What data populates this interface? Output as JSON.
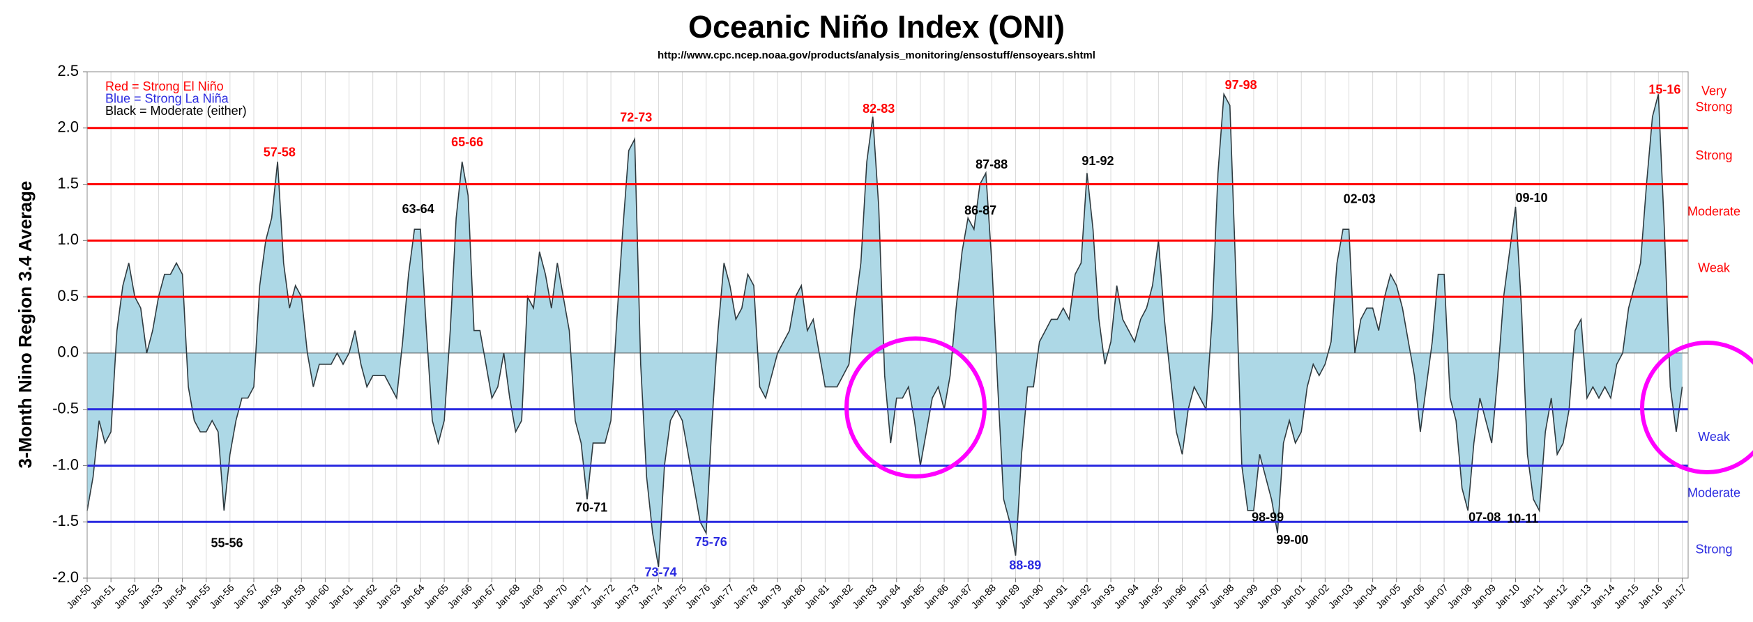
{
  "chart_data": {
    "type": "area",
    "title": "Oceanic Niño Index (ONI)",
    "subtitle": "http://www.cpc.ncep.noaa.gov/products/analysis_monitoring/ensostuff/ensoyears.shtml",
    "ylabel": "3-Month Nino Region 3.4 Average",
    "legend_notes": [
      {
        "text": "Red = Strong El Niño",
        "color": "#ff0000"
      },
      {
        "text": "Blue = Strong La Niña",
        "color": "#2a2ae0"
      },
      {
        "text": "Black = Moderate (either)",
        "color": "#000000"
      }
    ],
    "series": [
      {
        "color": "#add8e6",
        "line_color": "#2f3a3f",
        "x": [
          1950,
          1950.25,
          1950.5,
          1950.75,
          1951,
          1951.25,
          1951.5,
          1951.75,
          1952,
          1952.25,
          1952.5,
          1952.75,
          1953,
          1953.25,
          1953.5,
          1953.75,
          1954,
          1954.25,
          1954.5,
          1954.75,
          1955,
          1955.25,
          1955.5,
          1955.75,
          1956,
          1956.25,
          1956.5,
          1956.75,
          1957,
          1957.25,
          1957.5,
          1957.75,
          1958,
          1958.25,
          1958.5,
          1958.75,
          1959,
          1959.25,
          1959.5,
          1959.75,
          1960,
          1960.25,
          1960.5,
          1960.75,
          1961,
          1961.25,
          1961.5,
          1961.75,
          1962,
          1962.25,
          1962.5,
          1962.75,
          1963,
          1963.25,
          1963.5,
          1963.75,
          1964,
          1964.25,
          1964.5,
          1964.75,
          1965,
          1965.25,
          1965.5,
          1965.75,
          1966,
          1966.25,
          1966.5,
          1966.75,
          1967,
          1967.25,
          1967.5,
          1967.75,
          1968,
          1968.25,
          1968.5,
          1968.75,
          1969,
          1969.25,
          1969.5,
          1969.75,
          1970,
          1970.25,
          1970.5,
          1970.75,
          1971,
          1971.25,
          1971.5,
          1971.75,
          1972,
          1972.25,
          1972.5,
          1972.75,
          1973,
          1973.25,
          1973.5,
          1973.75,
          1974,
          1974.25,
          1974.5,
          1974.75,
          1975,
          1975.25,
          1975.5,
          1975.75,
          1976,
          1976.25,
          1976.5,
          1976.75,
          1977,
          1977.25,
          1977.5,
          1977.75,
          1978,
          1978.25,
          1978.5,
          1978.75,
          1979,
          1979.25,
          1979.5,
          1979.75,
          1980,
          1980.25,
          1980.5,
          1980.75,
          1981,
          1981.25,
          1981.5,
          1981.75,
          1982,
          1982.25,
          1982.5,
          1982.75,
          1983,
          1983.25,
          1983.5,
          1983.75,
          1984,
          1984.25,
          1984.5,
          1984.75,
          1985,
          1985.25,
          1985.5,
          1985.75,
          1986,
          1986.25,
          1986.5,
          1986.75,
          1987,
          1987.25,
          1987.5,
          1987.75,
          1988,
          1988.25,
          1988.5,
          1988.75,
          1989,
          1989.25,
          1989.5,
          1989.75,
          1990,
          1990.25,
          1990.5,
          1990.75,
          1991,
          1991.25,
          1991.5,
          1991.75,
          1992,
          1992.25,
          1992.5,
          1992.75,
          1993,
          1993.25,
          1993.5,
          1993.75,
          1994,
          1994.25,
          1994.5,
          1994.75,
          1995,
          1995.25,
          1995.5,
          1995.75,
          1996,
          1996.25,
          1996.5,
          1996.75,
          1997,
          1997.25,
          1997.5,
          1997.75,
          1998,
          1998.25,
          1998.5,
          1998.75,
          1999,
          1999.25,
          1999.5,
          1999.75,
          2000,
          2000.25,
          2000.5,
          2000.75,
          2001,
          2001.25,
          2001.5,
          2001.75,
          2002,
          2002.25,
          2002.5,
          2002.75,
          2003,
          2003.25,
          2003.5,
          2003.75,
          2004,
          2004.25,
          2004.5,
          2004.75,
          2005,
          2005.25,
          2005.5,
          2005.75,
          2006,
          2006.25,
          2006.5,
          2006.75,
          2007,
          2007.25,
          2007.5,
          2007.75,
          2008,
          2008.25,
          2008.5,
          2008.75,
          2009,
          2009.25,
          2009.5,
          2009.75,
          2010,
          2010.25,
          2010.5,
          2010.75,
          2011,
          2011.25,
          2011.5,
          2011.75,
          2012,
          2012.25,
          2012.5,
          2012.75,
          2013,
          2013.25,
          2013.5,
          2013.75,
          2014,
          2014.25,
          2014.5,
          2014.75,
          2015,
          2015.25,
          2015.5,
          2015.75,
          2016,
          2016.25,
          2016.5,
          2016.75,
          2017
        ],
        "values": [
          -1.4,
          -1.1,
          -0.6,
          -0.8,
          -0.7,
          0.2,
          0.6,
          0.8,
          0.5,
          0.4,
          0.0,
          0.2,
          0.5,
          0.7,
          0.7,
          0.8,
          0.7,
          -0.3,
          -0.6,
          -0.7,
          -0.7,
          -0.6,
          -0.7,
          -1.4,
          -0.9,
          -0.6,
          -0.4,
          -0.4,
          -0.3,
          0.6,
          1.0,
          1.2,
          1.7,
          0.8,
          0.4,
          0.6,
          0.5,
          0.0,
          -0.3,
          -0.1,
          -0.1,
          -0.1,
          0.0,
          -0.1,
          0.0,
          0.2,
          -0.1,
          -0.3,
          -0.2,
          -0.2,
          -0.2,
          -0.3,
          -0.4,
          0.1,
          0.7,
          1.1,
          1.1,
          0.2,
          -0.6,
          -0.8,
          -0.6,
          0.2,
          1.2,
          1.7,
          1.4,
          0.2,
          0.2,
          -0.1,
          -0.4,
          -0.3,
          0.0,
          -0.4,
          -0.7,
          -0.6,
          0.5,
          0.4,
          0.9,
          0.7,
          0.4,
          0.8,
          0.5,
          0.2,
          -0.6,
          -0.8,
          -1.3,
          -0.8,
          -0.8,
          -0.8,
          -0.6,
          0.3,
          1.1,
          1.8,
          1.9,
          -0.1,
          -1.1,
          -1.6,
          -1.9,
          -1.0,
          -0.6,
          -0.5,
          -0.6,
          -0.9,
          -1.2,
          -1.5,
          -1.6,
          -0.6,
          0.2,
          0.8,
          0.6,
          0.3,
          0.4,
          0.7,
          0.6,
          -0.3,
          -0.4,
          -0.2,
          0.0,
          0.1,
          0.2,
          0.5,
          0.6,
          0.2,
          0.3,
          0.0,
          -0.3,
          -0.3,
          -0.3,
          -0.2,
          -0.1,
          0.4,
          0.8,
          1.7,
          2.1,
          1.3,
          -0.2,
          -0.8,
          -0.4,
          -0.4,
          -0.3,
          -0.6,
          -1.0,
          -0.7,
          -0.4,
          -0.3,
          -0.5,
          -0.2,
          0.4,
          0.9,
          1.2,
          1.1,
          1.5,
          1.6,
          0.8,
          -0.3,
          -1.3,
          -1.5,
          -1.8,
          -0.9,
          -0.3,
          -0.3,
          0.1,
          0.2,
          0.3,
          0.3,
          0.4,
          0.3,
          0.7,
          0.8,
          1.6,
          1.1,
          0.3,
          -0.1,
          0.1,
          0.6,
          0.3,
          0.2,
          0.1,
          0.3,
          0.4,
          0.6,
          1.0,
          0.3,
          -0.2,
          -0.7,
          -0.9,
          -0.5,
          -0.3,
          -0.4,
          -0.5,
          0.3,
          1.6,
          2.3,
          2.2,
          0.7,
          -1.0,
          -1.4,
          -1.4,
          -0.9,
          -1.1,
          -1.3,
          -1.6,
          -0.8,
          -0.6,
          -0.8,
          -0.7,
          -0.3,
          -0.1,
          -0.2,
          -0.1,
          0.1,
          0.8,
          1.1,
          1.1,
          0.0,
          0.3,
          0.4,
          0.4,
          0.2,
          0.5,
          0.7,
          0.6,
          0.4,
          0.1,
          -0.2,
          -0.7,
          -0.3,
          0.1,
          0.7,
          0.7,
          -0.4,
          -0.6,
          -1.2,
          -1.4,
          -0.8,
          -0.4,
          -0.6,
          -0.8,
          -0.2,
          0.5,
          0.9,
          1.3,
          0.4,
          -0.9,
          -1.3,
          -1.4,
          -0.7,
          -0.4,
          -0.9,
          -0.8,
          -0.5,
          0.2,
          0.3,
          -0.4,
          -0.3,
          -0.4,
          -0.3,
          -0.4,
          -0.1,
          0.0,
          0.4,
          0.6,
          0.8,
          1.5,
          2.1,
          2.3,
          1.1,
          -0.3,
          -0.7,
          -0.3
        ]
      }
    ],
    "thresholds": [
      {
        "value": 2.0,
        "color": "#ff0000"
      },
      {
        "value": 1.5,
        "color": "#ff0000"
      },
      {
        "value": 1.0,
        "color": "#ff0000"
      },
      {
        "value": 0.5,
        "color": "#ff0000"
      },
      {
        "value": -0.5,
        "color": "#2a2ae0"
      },
      {
        "value": -1.0,
        "color": "#2a2ae0"
      },
      {
        "value": -1.5,
        "color": "#2a2ae0"
      }
    ],
    "band_labels": [
      {
        "lines": [
          "Very",
          "Strong"
        ],
        "color": "#ff0000"
      },
      {
        "lines": [
          "Strong"
        ],
        "color": "#ff0000"
      },
      {
        "lines": [
          "Moderate"
        ],
        "color": "#ff0000"
      },
      {
        "lines": [
          "Weak"
        ],
        "color": "#ff0000"
      },
      {
        "lines": [
          "Weak"
        ],
        "color": "#2a2ae0"
      },
      {
        "lines": [
          "Moderate"
        ],
        "color": "#2a2ae0"
      },
      {
        "lines": [
          "Strong"
        ],
        "color": "#2a2ae0"
      }
    ],
    "annotations": [
      {
        "text": "57-58",
        "color": "#ff0000"
      },
      {
        "text": "63-64",
        "color": "#000000"
      },
      {
        "text": "65-66",
        "color": "#ff0000"
      },
      {
        "text": "72-73",
        "color": "#ff0000"
      },
      {
        "text": "82-83",
        "color": "#ff0000"
      },
      {
        "text": "87-88",
        "color": "#000000"
      },
      {
        "text": "86-87",
        "color": "#000000"
      },
      {
        "text": "91-92",
        "color": "#000000"
      },
      {
        "text": "97-98",
        "color": "#ff0000"
      },
      {
        "text": "02-03",
        "color": "#000000"
      },
      {
        "text": "09-10",
        "color": "#000000"
      },
      {
        "text": "15-16",
        "color": "#ff0000"
      },
      {
        "text": "55-56",
        "color": "#000000"
      },
      {
        "text": "70-71",
        "color": "#000000"
      },
      {
        "text": "73-74",
        "color": "#2a2ae0"
      },
      {
        "text": "75-76",
        "color": "#2a2ae0"
      },
      {
        "text": "88-89",
        "color": "#2a2ae0"
      },
      {
        "text": "98-99",
        "color": "#000000"
      },
      {
        "text": "99-00",
        "color": "#000000"
      },
      {
        "text": "07-08",
        "color": "#000000"
      },
      {
        "text": "10-11",
        "color": "#000000"
      }
    ],
    "xlim": [
      1950,
      2017.25
    ],
    "ylim": [
      -2,
      2.5
    ],
    "yticks": [
      {
        "value": -2,
        "label": "-2.0"
      },
      -1.5,
      {
        "value": -1,
        "label": "-1.0"
      },
      -0.5,
      {
        "value": 0,
        "label": "0.0"
      },
      0.5,
      {
        "value": 1,
        "label": "1.0"
      },
      1.5,
      {
        "value": 2,
        "label": "2.0"
      },
      2.5
    ],
    "xticks": [
      {
        "value": 1950,
        "label": "Jan-50"
      },
      {
        "value": 1951,
        "label": "Jan-51"
      },
      {
        "value": 1952,
        "label": "Jan-52"
      },
      {
        "value": 1953,
        "label": "Jan-53"
      },
      {
        "value": 1954,
        "label": "Jan-54"
      },
      {
        "value": 1955,
        "label": "Jan-55"
      },
      {
        "value": 1956,
        "label": "Jan-56"
      },
      {
        "value": 1957,
        "label": "Jan-57"
      },
      {
        "value": 1958,
        "label": "Jan-58"
      },
      {
        "value": 1959,
        "label": "Jan-59"
      },
      {
        "value": 1960,
        "label": "Jan-60"
      },
      {
        "value": 1961,
        "label": "Jan-61"
      },
      {
        "value": 1962,
        "label": "Jan-62"
      },
      {
        "value": 1963,
        "label": "Jan-63"
      },
      {
        "value": 1964,
        "label": "Jan-64"
      },
      {
        "value": 1965,
        "label": "Jan-65"
      },
      {
        "value": 1966,
        "label": "Jan-66"
      },
      {
        "value": 1967,
        "label": "Jan-67"
      },
      {
        "value": 1968,
        "label": "Jan-68"
      },
      {
        "value": 1969,
        "label": "Jan-69"
      },
      {
        "value": 1970,
        "label": "Jan-70"
      },
      {
        "value": 1971,
        "label": "Jan-71"
      },
      {
        "value": 1972,
        "label": "Jan-72"
      },
      {
        "value": 1973,
        "label": "Jan-73"
      },
      {
        "value": 1974,
        "label": "Jan-74"
      },
      {
        "value": 1975,
        "label": "Jan-75"
      },
      {
        "value": 1976,
        "label": "Jan-76"
      },
      {
        "value": 1977,
        "label": "Jan-77"
      },
      {
        "value": 1978,
        "label": "Jan-78"
      },
      {
        "value": 1979,
        "label": "Jan-79"
      },
      {
        "value": 1980,
        "label": "Jan-80"
      },
      {
        "value": 1981,
        "label": "Jan-81"
      },
      {
        "value": 1982,
        "label": "Jan-82"
      },
      {
        "value": 1983,
        "label": "Jan-83"
      },
      {
        "value": 1984,
        "label": "Jan-84"
      },
      {
        "value": 1985,
        "label": "Jan-85"
      },
      {
        "value": 1986,
        "label": "Jan-86"
      },
      {
        "value": 1987,
        "label": "Jan-87"
      },
      {
        "value": 1988,
        "label": "Jan-88"
      },
      {
        "value": 1989,
        "label": "Jan-89"
      },
      {
        "value": 1990,
        "label": "Jan-90"
      },
      {
        "value": 1991,
        "label": "Jan-91"
      },
      {
        "value": 1992,
        "label": "Jan-92"
      },
      {
        "value": 1993,
        "label": "Jan-93"
      },
      {
        "value": 1994,
        "label": "Jan-94"
      },
      {
        "value": 1995,
        "label": "Jan-95"
      },
      {
        "value": 1996,
        "label": "Jan-96"
      },
      {
        "value": 1997,
        "label": "Jan-97"
      },
      {
        "value": 1998,
        "label": "Jan-98"
      },
      {
        "value": 1999,
        "label": "Jan-99"
      },
      {
        "value": 2000,
        "label": "Jan-00"
      },
      {
        "value": 2001,
        "label": "Jan-01"
      },
      {
        "value": 2002,
        "label": "Jan-02"
      },
      {
        "value": 2003,
        "label": "Jan-03"
      },
      {
        "value": 2004,
        "label": "Jan-04"
      },
      {
        "value": 2005,
        "label": "Jan-05"
      },
      {
        "value": 2006,
        "label": "Jan-06"
      },
      {
        "value": 2007,
        "label": "Jan-07"
      },
      {
        "value": 2008,
        "label": "Jan-08"
      },
      {
        "value": 2009,
        "label": "Jan-09"
      },
      {
        "value": 2010,
        "label": "Jan-10"
      },
      {
        "value": 2011,
        "label": "Jan-11"
      },
      {
        "value": 2012,
        "label": "Jan-12"
      },
      {
        "value": 2013,
        "label": "Jan-13"
      },
      {
        "value": 2014,
        "label": "Jan-14"
      },
      {
        "value": 2015,
        "label": "Jan-15"
      },
      {
        "value": 2016,
        "label": "Jan-16"
      },
      {
        "value": 2017,
        "label": "Jan-17"
      }
    ],
    "grid": true
  }
}
